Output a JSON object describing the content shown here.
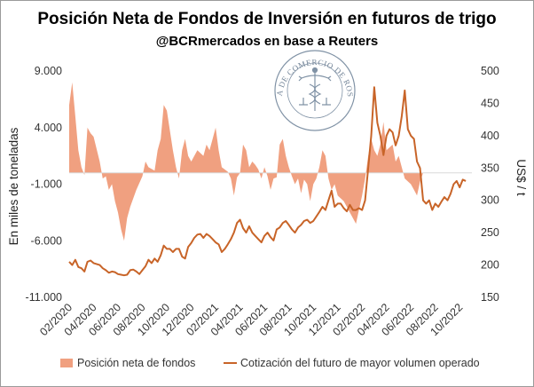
{
  "chart_data": {
    "type": "area+line",
    "title": "Posición Neta de Fondos de Inversión en futuros de trigo",
    "subtitle": "@BCRmercados en base a Reuters",
    "watermark_text": "BOLSA DE COMERCIO DE ROSARIO",
    "y_left": {
      "label": "En miles de toneladas",
      "range": [
        -11000,
        9000
      ],
      "ticks": [
        9000,
        4000,
        -1000,
        -6000,
        -11000
      ],
      "tick_labels": [
        "9.000",
        "4.000",
        "-1.000",
        "-6.000",
        "-11.000"
      ]
    },
    "y_right": {
      "label": "US$ / t",
      "range": [
        150,
        500
      ],
      "ticks": [
        500,
        450,
        400,
        350,
        300,
        250,
        200,
        150
      ],
      "tick_labels": [
        "500",
        "450",
        "400",
        "350",
        "300",
        "250",
        "200",
        "150"
      ]
    },
    "x": {
      "range": [
        0,
        33
      ],
      "ticks": [
        0,
        2,
        4,
        6,
        8,
        10,
        12,
        14,
        16,
        18,
        20,
        22,
        24,
        26,
        28,
        30,
        32
      ],
      "tick_labels": [
        "02/2020",
        "04/2020",
        "06/2020",
        "08/2020",
        "10/2020",
        "12/2020",
        "02/2021",
        "04/2021",
        "06/2021",
        "08/2021",
        "10/2021",
        "12/2021",
        "02/2022",
        "04/2022",
        "06/2022",
        "08/2022",
        "10/2022"
      ],
      "unit": "months since 02/2020"
    },
    "series": [
      {
        "name": "Posición neta de fondos",
        "kind": "area",
        "axis": "left",
        "color": "#f0a080",
        "points": [
          [
            0,
            6000
          ],
          [
            0.25,
            8000
          ],
          [
            0.5,
            5000
          ],
          [
            0.75,
            2000
          ],
          [
            1,
            500
          ],
          [
            1.25,
            -200
          ],
          [
            1.5,
            4000
          ],
          [
            1.75,
            3500
          ],
          [
            2,
            3200
          ],
          [
            2.5,
            1000
          ],
          [
            2.75,
            -500
          ],
          [
            3,
            -300
          ],
          [
            3.25,
            -1500
          ],
          [
            3.5,
            -1000
          ],
          [
            3.75,
            -2500
          ],
          [
            4,
            -3500
          ],
          [
            4.25,
            -5000
          ],
          [
            4.5,
            -6000
          ],
          [
            4.75,
            -4000
          ],
          [
            5,
            -3000
          ],
          [
            5.5,
            -1500
          ],
          [
            6,
            -300
          ],
          [
            6.25,
            1000
          ],
          [
            6.5,
            500
          ],
          [
            7,
            200
          ],
          [
            7.25,
            2000
          ],
          [
            7.5,
            3000
          ],
          [
            7.75,
            6000
          ],
          [
            8,
            5500
          ],
          [
            8.5,
            2000
          ],
          [
            8.75,
            500
          ],
          [
            9,
            -500
          ],
          [
            9.25,
            2000
          ],
          [
            9.5,
            3000
          ],
          [
            9.75,
            1500
          ],
          [
            10,
            1000
          ],
          [
            10.5,
            2000
          ],
          [
            11,
            1500
          ],
          [
            11.25,
            2500
          ],
          [
            11.5,
            2000
          ],
          [
            11.75,
            3000
          ],
          [
            12,
            4000
          ],
          [
            12.25,
            2000
          ],
          [
            12.5,
            500
          ],
          [
            13,
            100
          ],
          [
            13.25,
            -500
          ],
          [
            13.5,
            -2000
          ],
          [
            13.75,
            -400
          ],
          [
            14,
            0
          ],
          [
            14.25,
            2500
          ],
          [
            14.5,
            2000
          ],
          [
            14.75,
            500
          ],
          [
            15,
            1000
          ],
          [
            15.25,
            700
          ],
          [
            15.5,
            300
          ],
          [
            15.75,
            -500
          ],
          [
            16,
            500
          ],
          [
            16.25,
            -300
          ],
          [
            16.5,
            -1500
          ],
          [
            16.75,
            -500
          ],
          [
            17,
            -400
          ],
          [
            17.25,
            2500
          ],
          [
            17.5,
            3000
          ],
          [
            17.75,
            1500
          ],
          [
            18,
            500
          ],
          [
            18.25,
            -300
          ],
          [
            18.5,
            -1000
          ],
          [
            18.75,
            -500
          ],
          [
            19,
            -1800
          ],
          [
            19.25,
            -600
          ],
          [
            19.5,
            -1000
          ],
          [
            19.75,
            -2500
          ],
          [
            20,
            -1000
          ],
          [
            20.25,
            -500
          ],
          [
            20.5,
            500
          ],
          [
            20.75,
            2000
          ],
          [
            21,
            1500
          ],
          [
            21.25,
            -500
          ],
          [
            21.5,
            -1500
          ],
          [
            21.75,
            -1000
          ],
          [
            22,
            -2000
          ],
          [
            22.5,
            -2500
          ],
          [
            22.75,
            -3000
          ],
          [
            23,
            -3500
          ],
          [
            23.5,
            -4500
          ],
          [
            24,
            -2000
          ],
          [
            24.25,
            -500
          ],
          [
            24.5,
            1500
          ],
          [
            24.75,
            3000
          ],
          [
            25,
            2000
          ],
          [
            25.25,
            1500
          ],
          [
            25.5,
            2500
          ],
          [
            25.75,
            4500
          ],
          [
            26,
            2000
          ],
          [
            26.5,
            2500
          ],
          [
            26.75,
            1000
          ],
          [
            27,
            1500
          ],
          [
            27.25,
            500
          ],
          [
            27.5,
            -500
          ],
          [
            28,
            -1000
          ],
          [
            28.25,
            -1500
          ],
          [
            28.5,
            -2000
          ],
          [
            28.75,
            -800
          ],
          [
            29,
            0
          ]
        ]
      },
      {
        "name": "Cotización del futuro de mayor volumen operado",
        "kind": "line",
        "axis": "right",
        "color": "#c86428",
        "points": [
          [
            0,
            205
          ],
          [
            0.25,
            200
          ],
          [
            0.5,
            208
          ],
          [
            0.75,
            197
          ],
          [
            1,
            195
          ],
          [
            1.25,
            190
          ],
          [
            1.5,
            205
          ],
          [
            1.75,
            207
          ],
          [
            2,
            203
          ],
          [
            2.5,
            200
          ],
          [
            2.75,
            195
          ],
          [
            3,
            192
          ],
          [
            3.25,
            188
          ],
          [
            3.5,
            190
          ],
          [
            3.75,
            189
          ],
          [
            4,
            186
          ],
          [
            4.25,
            185
          ],
          [
            4.5,
            184
          ],
          [
            4.75,
            185
          ],
          [
            5,
            192
          ],
          [
            5.25,
            193
          ],
          [
            5.5,
            190
          ],
          [
            5.75,
            186
          ],
          [
            6,
            192
          ],
          [
            6.25,
            198
          ],
          [
            6.5,
            208
          ],
          [
            6.75,
            203
          ],
          [
            7,
            210
          ],
          [
            7.25,
            205
          ],
          [
            7.5,
            215
          ],
          [
            7.75,
            230
          ],
          [
            8,
            225
          ],
          [
            8.25,
            225
          ],
          [
            8.5,
            220
          ],
          [
            8.75,
            225
          ],
          [
            9,
            225
          ],
          [
            9.25,
            213
          ],
          [
            9.5,
            210
          ],
          [
            9.75,
            228
          ],
          [
            10,
            234
          ],
          [
            10.25,
            242
          ],
          [
            10.5,
            247
          ],
          [
            10.75,
            248
          ],
          [
            11,
            242
          ],
          [
            11.25,
            248
          ],
          [
            11.5,
            245
          ],
          [
            11.75,
            240
          ],
          [
            12,
            235
          ],
          [
            12.25,
            232
          ],
          [
            12.5,
            220
          ],
          [
            12.75,
            225
          ],
          [
            13,
            232
          ],
          [
            13.25,
            240
          ],
          [
            13.5,
            250
          ],
          [
            13.75,
            265
          ],
          [
            14,
            270
          ],
          [
            14.25,
            257
          ],
          [
            14.5,
            250
          ],
          [
            14.75,
            260
          ],
          [
            15,
            250
          ],
          [
            15.25,
            245
          ],
          [
            15.5,
            240
          ],
          [
            15.75,
            235
          ],
          [
            16,
            245
          ],
          [
            16.25,
            250
          ],
          [
            16.5,
            243
          ],
          [
            16.75,
            238
          ],
          [
            17,
            255
          ],
          [
            17.25,
            258
          ],
          [
            17.5,
            265
          ],
          [
            17.75,
            268
          ],
          [
            18,
            262
          ],
          [
            18.25,
            255
          ],
          [
            18.5,
            250
          ],
          [
            18.75,
            258
          ],
          [
            19,
            262
          ],
          [
            19.25,
            268
          ],
          [
            19.5,
            270
          ],
          [
            19.75,
            265
          ],
          [
            20,
            268
          ],
          [
            20.25,
            275
          ],
          [
            20.5,
            282
          ],
          [
            20.75,
            290
          ],
          [
            21,
            285
          ],
          [
            21.25,
            300
          ],
          [
            21.5,
            315
          ],
          [
            21.75,
            290
          ],
          [
            22,
            295
          ],
          [
            22.25,
            295
          ],
          [
            22.5,
            288
          ],
          [
            22.75,
            283
          ],
          [
            23,
            293
          ],
          [
            23.25,
            285
          ],
          [
            23.5,
            285
          ],
          [
            23.75,
            288
          ],
          [
            24,
            285
          ],
          [
            24.25,
            300
          ],
          [
            24.5,
            350
          ],
          [
            24.75,
            400
          ],
          [
            25,
            475
          ],
          [
            25.25,
            420
          ],
          [
            25.5,
            400
          ],
          [
            25.75,
            370
          ],
          [
            26,
            400
          ],
          [
            26.25,
            410
          ],
          [
            26.5,
            405
          ],
          [
            26.75,
            385
          ],
          [
            27,
            400
          ],
          [
            27.25,
            430
          ],
          [
            27.5,
            470
          ],
          [
            27.75,
            410
          ],
          [
            28,
            400
          ],
          [
            28.25,
            395
          ],
          [
            28.5,
            360
          ],
          [
            28.75,
            350
          ],
          [
            29,
            300
          ],
          [
            29.25,
            295
          ],
          [
            29.5,
            300
          ],
          [
            29.75,
            285
          ],
          [
            30,
            295
          ],
          [
            30.25,
            290
          ],
          [
            30.5,
            298
          ],
          [
            30.75,
            305
          ],
          [
            31,
            300
          ],
          [
            31.25,
            310
          ],
          [
            31.5,
            325
          ],
          [
            31.75,
            330
          ],
          [
            32,
            320
          ],
          [
            32.25,
            332
          ],
          [
            32.5,
            330
          ]
        ]
      }
    ],
    "legend": {
      "placement": "bottom"
    },
    "grid": false
  }
}
